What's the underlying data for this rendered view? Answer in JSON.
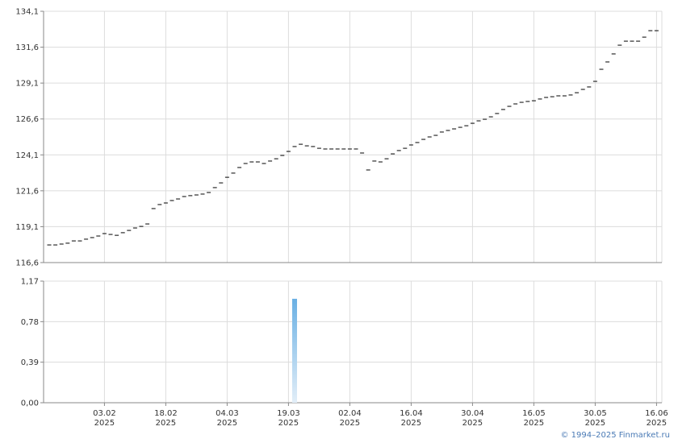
{
  "chart_data": [
    {
      "type": "tick",
      "color": "#000000",
      "grid": true,
      "ylim": [
        116.6,
        134.1
      ],
      "yticks": [
        {
          "value": 116.6,
          "label": "116,6"
        },
        {
          "value": 119.1,
          "label": "119,1"
        },
        {
          "value": 121.6,
          "label": "121,6"
        },
        {
          "value": 124.1,
          "label": "124,1"
        },
        {
          "value": 126.6,
          "label": "126,6"
        },
        {
          "value": 129.1,
          "label": "129,1"
        },
        {
          "value": 131.6,
          "label": "131,6"
        },
        {
          "value": 134.1,
          "label": "134,1"
        }
      ],
      "values": [
        117.83,
        117.83,
        117.89,
        117.95,
        118.11,
        118.11,
        118.23,
        118.34,
        118.45,
        118.62,
        118.56,
        118.5,
        118.68,
        118.84,
        119.01,
        119.12,
        119.29,
        120.36,
        120.64,
        120.75,
        120.92,
        121.03,
        121.2,
        121.26,
        121.31,
        121.37,
        121.48,
        121.82,
        122.15,
        122.54,
        122.83,
        123.22,
        123.5,
        123.61,
        123.61,
        123.5,
        123.67,
        123.83,
        124.06,
        124.34,
        124.68,
        124.84,
        124.73,
        124.68,
        124.56,
        124.51,
        124.51,
        124.51,
        124.51,
        124.51,
        124.51,
        124.23,
        123.05,
        123.67,
        123.61,
        123.83,
        124.17,
        124.4,
        124.56,
        124.79,
        124.96,
        125.18,
        125.35,
        125.46,
        125.69,
        125.8,
        125.91,
        126.02,
        126.13,
        126.3,
        126.47,
        126.58,
        126.75,
        126.98,
        127.26,
        127.48,
        127.65,
        127.76,
        127.82,
        127.87,
        127.99,
        128.1,
        128.15,
        128.21,
        128.21,
        128.27,
        128.43,
        128.66,
        128.83,
        129.22,
        130.06,
        130.57,
        131.13,
        131.74,
        132.02,
        132.02,
        132.02,
        132.3,
        132.75,
        132.75
      ]
    },
    {
      "type": "bar",
      "color": "#6ab0e4",
      "grid": true,
      "ylim": [
        0,
        1.17
      ],
      "yticks": [
        {
          "value": 0,
          "label": "0,00"
        },
        {
          "value": 0.39,
          "label": "0,39"
        },
        {
          "value": 0.78,
          "label": "0,78"
        },
        {
          "value": 1.17,
          "label": "1,17"
        }
      ],
      "categories": [
        null,
        null,
        null,
        null,
        null,
        null,
        null,
        null,
        null,
        [
          "03.02",
          "2025"
        ],
        null,
        null,
        null,
        null,
        null,
        null,
        null,
        null,
        null,
        [
          "18.02",
          "2025"
        ],
        null,
        null,
        null,
        null,
        null,
        null,
        null,
        null,
        null,
        [
          "04.03",
          "2025"
        ],
        null,
        null,
        null,
        null,
        null,
        null,
        null,
        null,
        null,
        [
          "19.03",
          "2025"
        ],
        null,
        null,
        null,
        null,
        null,
        null,
        null,
        null,
        null,
        [
          "02.04",
          "2025"
        ],
        null,
        null,
        null,
        null,
        null,
        null,
        null,
        null,
        null,
        [
          "16.04",
          "2025"
        ],
        null,
        null,
        null,
        null,
        null,
        null,
        null,
        null,
        null,
        [
          "30.04",
          "2025"
        ],
        null,
        null,
        null,
        null,
        null,
        null,
        null,
        null,
        null,
        [
          "16.05",
          "2025"
        ],
        null,
        null,
        null,
        null,
        null,
        null,
        null,
        null,
        null,
        [
          "30.05",
          "2025"
        ],
        null,
        null,
        null,
        null,
        null,
        null,
        null,
        null,
        null,
        [
          "16.06",
          "2025"
        ]
      ],
      "values": [
        0,
        0,
        0,
        0,
        0,
        0,
        0,
        0,
        0,
        0,
        0,
        0,
        0,
        0,
        0,
        0,
        0,
        0,
        0,
        0,
        0,
        0,
        0,
        0,
        0,
        0,
        0,
        0,
        0,
        0,
        0,
        0,
        0,
        0,
        0,
        0,
        0,
        0,
        0,
        0,
        1.0,
        0,
        0,
        0,
        0,
        0,
        0,
        0,
        0,
        0,
        0,
        0,
        0,
        0,
        0,
        0,
        0,
        0,
        0,
        0,
        0,
        0,
        0,
        0,
        0,
        0,
        0,
        0,
        0,
        0,
        0,
        0,
        0,
        0,
        0,
        0,
        0,
        0,
        0,
        0,
        0,
        0,
        0,
        0,
        0,
        0,
        0,
        0,
        0,
        0,
        0,
        0,
        0,
        0,
        0,
        0,
        0,
        0,
        0,
        0
      ]
    }
  ],
  "copyright": "© 1994–2025 Finmarket.ru"
}
